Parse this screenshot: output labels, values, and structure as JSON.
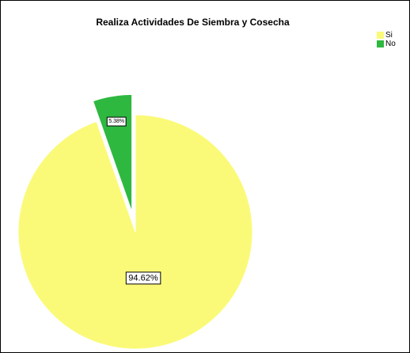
{
  "chart_data": {
    "type": "pie",
    "title": "Realiza Actividades De Siembra y Cosecha",
    "slices": [
      {
        "label": "Si",
        "value": 94.62,
        "data_label": "94.62%",
        "color": "#fafa78",
        "exploded": false
      },
      {
        "label": "No",
        "value": 5.38,
        "data_label": "5.38%",
        "color": "#2eb840",
        "exploded": true
      }
    ],
    "legend": {
      "position": "top-right",
      "entries": [
        "Si",
        "No"
      ]
    }
  }
}
